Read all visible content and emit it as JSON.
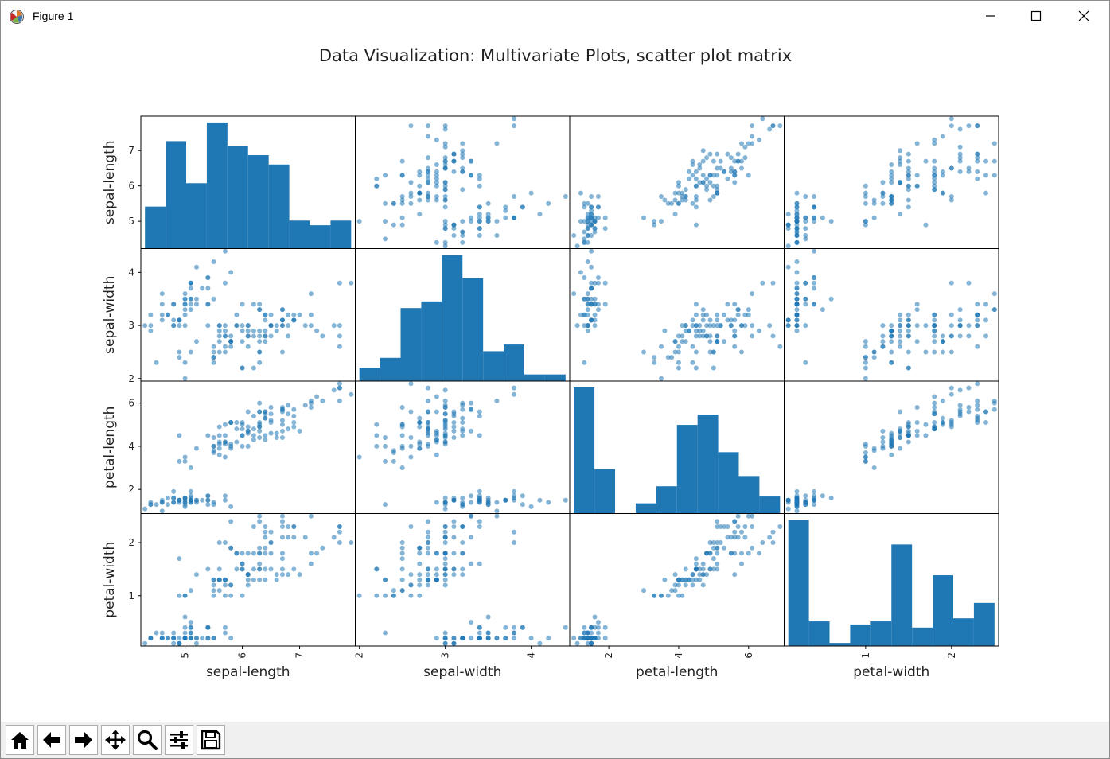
{
  "window": {
    "title": "Figure 1",
    "icons": [
      "python-matplotlib-icon",
      "minimize-icon",
      "maximize-icon",
      "close-icon"
    ]
  },
  "toolbar": {
    "buttons": [
      {
        "name": "home",
        "icon": "home-icon"
      },
      {
        "name": "back",
        "icon": "arrow-left-icon"
      },
      {
        "name": "forward",
        "icon": "arrow-right-icon"
      },
      {
        "name": "pan",
        "icon": "move-icon"
      },
      {
        "name": "zoom",
        "icon": "magnifier-icon"
      },
      {
        "name": "configure-subplots",
        "icon": "sliders-icon"
      },
      {
        "name": "save",
        "icon": "floppy-disk-icon"
      }
    ]
  },
  "colors": {
    "marker": "#1f77b4",
    "frame": "#000000",
    "text": "#262626"
  },
  "chart_data": {
    "type": "scatter",
    "title": "Data Visualization: Multivariate Plots, scatter plot matrix",
    "variables": [
      "sepal-length",
      "sepal-width",
      "petal-length",
      "petal-width"
    ],
    "ranges": [
      [
        4.3,
        7.9
      ],
      [
        2.0,
        4.4
      ],
      [
        1.0,
        6.9
      ],
      [
        0.1,
        2.5
      ]
    ],
    "ticks": [
      [
        5,
        6,
        7
      ],
      [
        2,
        3,
        4
      ],
      [
        2,
        4,
        6
      ],
      [
        1,
        2
      ]
    ],
    "histogram_bins": 10,
    "grid": false,
    "legend": "none",
    "samples": [
      [
        5.1,
        3.5,
        1.4,
        0.2
      ],
      [
        4.9,
        3.0,
        1.4,
        0.2
      ],
      [
        4.7,
        3.2,
        1.3,
        0.2
      ],
      [
        4.6,
        3.1,
        1.5,
        0.2
      ],
      [
        5.0,
        3.6,
        1.4,
        0.2
      ],
      [
        5.4,
        3.9,
        1.7,
        0.4
      ],
      [
        4.6,
        3.4,
        1.4,
        0.3
      ],
      [
        5.0,
        3.4,
        1.5,
        0.2
      ],
      [
        4.4,
        2.9,
        1.4,
        0.2
      ],
      [
        4.9,
        3.1,
        1.5,
        0.1
      ],
      [
        5.4,
        3.7,
        1.5,
        0.2
      ],
      [
        4.8,
        3.4,
        1.6,
        0.2
      ],
      [
        4.8,
        3.0,
        1.4,
        0.1
      ],
      [
        4.3,
        3.0,
        1.1,
        0.1
      ],
      [
        5.8,
        4.0,
        1.2,
        0.2
      ],
      [
        5.7,
        4.4,
        1.5,
        0.4
      ],
      [
        5.4,
        3.9,
        1.3,
        0.4
      ],
      [
        5.1,
        3.5,
        1.4,
        0.3
      ],
      [
        5.7,
        3.8,
        1.7,
        0.3
      ],
      [
        5.1,
        3.8,
        1.5,
        0.3
      ],
      [
        5.4,
        3.4,
        1.7,
        0.2
      ],
      [
        5.1,
        3.7,
        1.5,
        0.4
      ],
      [
        4.6,
        3.6,
        1.0,
        0.2
      ],
      [
        5.1,
        3.3,
        1.7,
        0.5
      ],
      [
        4.8,
        3.4,
        1.9,
        0.2
      ],
      [
        5.0,
        3.0,
        1.6,
        0.2
      ],
      [
        5.0,
        3.4,
        1.6,
        0.4
      ],
      [
        5.2,
        3.5,
        1.5,
        0.2
      ],
      [
        5.2,
        3.4,
        1.4,
        0.2
      ],
      [
        4.7,
        3.2,
        1.6,
        0.2
      ],
      [
        4.8,
        3.1,
        1.6,
        0.2
      ],
      [
        5.4,
        3.4,
        1.5,
        0.4
      ],
      [
        5.2,
        4.1,
        1.5,
        0.1
      ],
      [
        5.5,
        4.2,
        1.4,
        0.2
      ],
      [
        4.9,
        3.1,
        1.5,
        0.1
      ],
      [
        5.0,
        3.2,
        1.2,
        0.2
      ],
      [
        5.5,
        3.5,
        1.3,
        0.2
      ],
      [
        4.9,
        3.1,
        1.5,
        0.1
      ],
      [
        4.4,
        3.0,
        1.3,
        0.2
      ],
      [
        5.1,
        3.4,
        1.5,
        0.2
      ],
      [
        5.0,
        3.5,
        1.3,
        0.3
      ],
      [
        4.5,
        2.3,
        1.3,
        0.3
      ],
      [
        4.4,
        3.2,
        1.3,
        0.2
      ],
      [
        5.0,
        3.5,
        1.6,
        0.6
      ],
      [
        5.1,
        3.8,
        1.9,
        0.4
      ],
      [
        4.8,
        3.0,
        1.4,
        0.3
      ],
      [
        5.1,
        3.8,
        1.6,
        0.2
      ],
      [
        4.6,
        3.2,
        1.4,
        0.2
      ],
      [
        5.3,
        3.7,
        1.5,
        0.2
      ],
      [
        5.0,
        3.3,
        1.4,
        0.2
      ],
      [
        7.0,
        3.2,
        4.7,
        1.4
      ],
      [
        6.4,
        3.2,
        4.5,
        1.5
      ],
      [
        6.9,
        3.1,
        4.9,
        1.5
      ],
      [
        5.5,
        2.3,
        4.0,
        1.3
      ],
      [
        6.5,
        2.8,
        4.6,
        1.5
      ],
      [
        5.7,
        2.8,
        4.5,
        1.3
      ],
      [
        6.3,
        3.3,
        4.7,
        1.6
      ],
      [
        4.9,
        2.4,
        3.3,
        1.0
      ],
      [
        6.6,
        2.9,
        4.6,
        1.3
      ],
      [
        5.2,
        2.7,
        3.9,
        1.4
      ],
      [
        5.0,
        2.0,
        3.5,
        1.0
      ],
      [
        5.9,
        3.0,
        4.2,
        1.5
      ],
      [
        6.0,
        2.2,
        4.0,
        1.0
      ],
      [
        6.1,
        2.9,
        4.7,
        1.4
      ],
      [
        5.6,
        2.9,
        3.6,
        1.3
      ],
      [
        6.7,
        3.1,
        4.4,
        1.4
      ],
      [
        5.6,
        3.0,
        4.5,
        1.5
      ],
      [
        5.8,
        2.7,
        4.1,
        1.0
      ],
      [
        6.2,
        2.2,
        4.5,
        1.5
      ],
      [
        5.6,
        2.5,
        3.9,
        1.1
      ],
      [
        5.9,
        3.2,
        4.8,
        1.8
      ],
      [
        6.1,
        2.8,
        4.0,
        1.3
      ],
      [
        6.3,
        2.5,
        4.9,
        1.5
      ],
      [
        6.1,
        2.8,
        4.7,
        1.2
      ],
      [
        6.4,
        2.9,
        4.3,
        1.3
      ],
      [
        6.6,
        3.0,
        4.4,
        1.4
      ],
      [
        6.8,
        2.8,
        4.8,
        1.4
      ],
      [
        6.7,
        3.0,
        5.0,
        1.7
      ],
      [
        6.0,
        2.9,
        4.5,
        1.5
      ],
      [
        5.7,
        2.6,
        3.5,
        1.0
      ],
      [
        5.5,
        2.4,
        3.8,
        1.1
      ],
      [
        5.5,
        2.4,
        3.7,
        1.0
      ],
      [
        5.8,
        2.7,
        3.9,
        1.2
      ],
      [
        6.0,
        2.7,
        5.1,
        1.6
      ],
      [
        5.4,
        3.0,
        4.5,
        1.5
      ],
      [
        6.0,
        3.4,
        4.5,
        1.6
      ],
      [
        6.7,
        3.1,
        4.7,
        1.5
      ],
      [
        6.3,
        2.3,
        4.4,
        1.3
      ],
      [
        5.6,
        3.0,
        4.1,
        1.3
      ],
      [
        5.5,
        2.5,
        4.0,
        1.3
      ],
      [
        5.5,
        2.6,
        4.4,
        1.2
      ],
      [
        6.1,
        3.0,
        4.6,
        1.4
      ],
      [
        5.8,
        2.6,
        4.0,
        1.2
      ],
      [
        5.0,
        2.3,
        3.3,
        1.0
      ],
      [
        5.6,
        2.7,
        4.2,
        1.3
      ],
      [
        5.7,
        3.0,
        4.2,
        1.2
      ],
      [
        5.7,
        2.9,
        4.2,
        1.3
      ],
      [
        6.2,
        2.9,
        4.3,
        1.3
      ],
      [
        5.1,
        2.5,
        3.0,
        1.1
      ],
      [
        5.7,
        2.8,
        4.1,
        1.3
      ],
      [
        6.3,
        3.3,
        6.0,
        2.5
      ],
      [
        5.8,
        2.7,
        5.1,
        1.9
      ],
      [
        7.1,
        3.0,
        5.9,
        2.1
      ],
      [
        6.3,
        2.9,
        5.6,
        1.8
      ],
      [
        6.5,
        3.0,
        5.8,
        2.2
      ],
      [
        7.6,
        3.0,
        6.6,
        2.1
      ],
      [
        4.9,
        2.5,
        4.5,
        1.7
      ],
      [
        7.3,
        2.9,
        6.3,
        1.8
      ],
      [
        6.7,
        2.5,
        5.8,
        1.8
      ],
      [
        7.2,
        3.6,
        6.1,
        2.5
      ],
      [
        6.5,
        3.2,
        5.1,
        2.0
      ],
      [
        6.4,
        2.7,
        5.3,
        1.9
      ],
      [
        6.8,
        3.0,
        5.5,
        2.1
      ],
      [
        5.7,
        2.5,
        5.0,
        2.0
      ],
      [
        5.8,
        2.8,
        5.1,
        2.4
      ],
      [
        6.4,
        3.2,
        5.3,
        2.3
      ],
      [
        6.5,
        3.0,
        5.5,
        1.8
      ],
      [
        7.7,
        3.8,
        6.7,
        2.2
      ],
      [
        7.7,
        2.6,
        6.9,
        2.3
      ],
      [
        6.0,
        2.2,
        5.0,
        1.5
      ],
      [
        6.9,
        3.2,
        5.7,
        2.3
      ],
      [
        5.6,
        2.8,
        4.9,
        2.0
      ],
      [
        7.7,
        2.8,
        6.7,
        2.0
      ],
      [
        6.3,
        2.7,
        4.9,
        1.8
      ],
      [
        6.7,
        3.3,
        5.7,
        2.1
      ],
      [
        7.2,
        3.2,
        6.0,
        1.8
      ],
      [
        6.2,
        2.8,
        4.8,
        1.8
      ],
      [
        6.1,
        3.0,
        4.9,
        1.8
      ],
      [
        6.4,
        2.8,
        5.6,
        2.1
      ],
      [
        7.2,
        3.0,
        5.8,
        1.6
      ],
      [
        7.4,
        2.8,
        6.1,
        1.9
      ],
      [
        7.9,
        3.8,
        6.4,
        2.0
      ],
      [
        6.4,
        2.8,
        5.6,
        2.2
      ],
      [
        6.3,
        2.8,
        5.1,
        1.5
      ],
      [
        6.1,
        2.6,
        5.6,
        1.4
      ],
      [
        7.7,
        3.0,
        6.1,
        2.3
      ],
      [
        6.3,
        3.4,
        5.6,
        2.4
      ],
      [
        6.4,
        3.1,
        5.5,
        1.8
      ],
      [
        6.0,
        3.0,
        4.8,
        1.8
      ],
      [
        6.9,
        3.1,
        5.4,
        2.1
      ],
      [
        6.7,
        3.1,
        5.6,
        2.4
      ],
      [
        6.9,
        3.1,
        5.1,
        2.3
      ],
      [
        5.8,
        2.7,
        5.1,
        1.9
      ],
      [
        6.8,
        3.2,
        5.9,
        2.3
      ],
      [
        6.7,
        3.3,
        5.7,
        2.5
      ],
      [
        6.7,
        3.0,
        5.2,
        2.3
      ],
      [
        6.3,
        2.5,
        5.0,
        1.9
      ],
      [
        6.5,
        3.0,
        5.2,
        2.0
      ],
      [
        6.2,
        3.4,
        5.4,
        2.3
      ],
      [
        5.9,
        3.0,
        5.1,
        1.8
      ]
    ]
  }
}
